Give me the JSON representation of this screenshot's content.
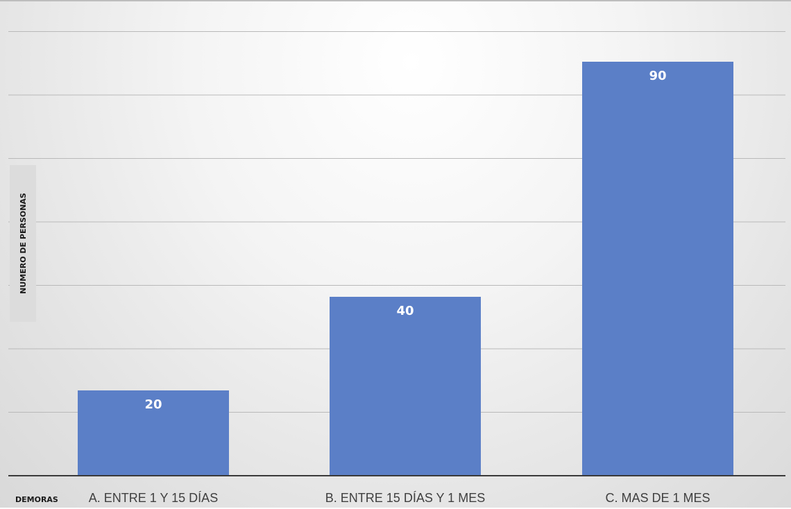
{
  "chart_data": {
    "type": "bar",
    "xlabel": "DEMORAS",
    "ylabel": "NUMERO DE PERSONAS",
    "categories": [
      "A. ENTRE 1 Y 15 DÍAS",
      "B. ENTRE 15 DÍAS Y 1 MES",
      "C. MAS DE 1 MES"
    ],
    "values": [
      20,
      40,
      90
    ],
    "grid": true,
    "colors": {
      "bar": "#5B7FC7",
      "data_label": "#FFFFFF"
    }
  }
}
